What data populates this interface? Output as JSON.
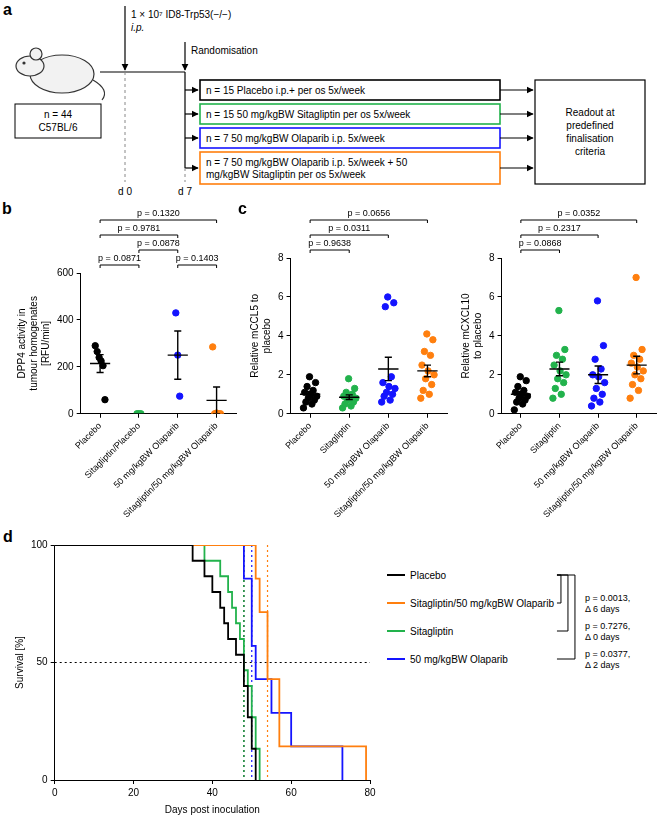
{
  "panel_a": {
    "label": "a",
    "inoculum": "1 × 10⁷ ID8-Trp53(−/−)",
    "route": "i.p.",
    "cohort": [
      "n = 44",
      "C57BL/6"
    ],
    "day_start": "d 0",
    "day_randomisation": "d 7",
    "randomisation": "Randomisation",
    "arms": [
      {
        "text": "n = 15 Placebo i.p.+ per os 5x/week",
        "color": "#000000"
      },
      {
        "text": "n = 15 50 mg/kgBW Sitagliptin per os 5x/week",
        "color": "#22b24c"
      },
      {
        "text": "n = 7 50 mg/kgBW Olaparib i.p. 5x/week",
        "color": "#1414ff"
      },
      {
        "text": "n = 7 50 mg/kgBW Olaparib i.p. 5x/week + 50 mg/kgBW Sitagliptin per os 5x/week",
        "color": "#ff7f0e"
      }
    ],
    "readout": "Readout at predefined finalisation criteria"
  },
  "chart_data": [
    {
      "panel": "b",
      "type": "strip",
      "categories": [
        "Placebo",
        "Sitagliptin/Placebo",
        "50 mg/kgBW Olaparib",
        "Sitagliptin/50 mg/kgBW Olaparib"
      ],
      "colors": [
        "#000000",
        "#22b24c",
        "#1414ff",
        "#ff7f0e"
      ],
      "values": [
        [
          290,
          265,
          240,
          225,
          205,
          60
        ],
        [
          0,
          0,
          0
        ],
        [
          430,
          250,
          75
        ],
        [
          285,
          3,
          0,
          0,
          0
        ]
      ],
      "means": [
        214,
        0,
        250,
        57
      ],
      "sem": [
        38,
        0,
        103,
        57
      ],
      "ylabel": "DPP4 activity in tumour homogenates [RFU/min]",
      "ylim": [
        0,
        600
      ],
      "yticks": [
        0,
        200,
        400,
        600
      ],
      "grid": false,
      "comparisons": [
        {
          "from": "Placebo",
          "to": "Sitagliptin/Placebo",
          "label": "p = 0.0871"
        },
        {
          "from": "Placebo",
          "to": "50 mg/kgBW Olaparib",
          "label": "p = 0.9781"
        },
        {
          "from": "Placebo",
          "to": "Sitagliptin/50 mg/kgBW Olaparib",
          "label": "p = 0.1320"
        },
        {
          "from": "Sitagliptin/Placebo",
          "to": "50 mg/kgBW Olaparib",
          "label": "p = 0.0878"
        },
        {
          "from": "50 mg/kgBW Olaparib",
          "to": "Sitagliptin/50 mg/kgBW Olaparib",
          "label": "p = 0.1403"
        }
      ]
    },
    {
      "panel": "c",
      "type": "strip",
      "categories": [
        "Placebo",
        "Sitagliptin",
        "50 mg/kgBW Olaparib",
        "Sitagliptin/50 mg/kgBW Olaparib"
      ],
      "colors": [
        "#000000",
        "#22b24c",
        "#1414ff",
        "#ff7f0e"
      ],
      "values": [
        [
          0.3,
          0.5,
          0.6,
          0.7,
          0.8,
          0.9,
          1.0,
          1.1,
          1.2,
          1.4,
          1.6,
          1.9
        ],
        [
          0.3,
          0.4,
          0.5,
          0.6,
          0.7,
          0.8,
          0.8,
          0.9,
          1.0,
          1.1,
          1.3,
          1.8
        ],
        [
          0.6,
          0.7,
          0.9,
          1.0,
          1.1,
          1.3,
          1.4,
          1.6,
          1.9,
          5.5,
          5.7,
          6.0
        ],
        [
          0.8,
          1.0,
          1.2,
          1.5,
          1.8,
          2.0,
          2.2,
          2.5,
          3.0,
          3.2,
          3.8,
          4.1
        ]
      ],
      "means": [
        1.0,
        0.85,
        2.3,
        2.2
      ],
      "sem": [
        0.14,
        0.12,
        0.6,
        0.3
      ],
      "ylabel": "Relative mCCL5 to placebo",
      "ylim": [
        0,
        8
      ],
      "yticks": [
        0,
        2,
        4,
        6,
        8
      ],
      "grid": false,
      "comparisons": [
        {
          "from": "Placebo",
          "to": "Sitagliptin",
          "label": "p = 0.9638"
        },
        {
          "from": "Placebo",
          "to": "50 mg/kgBW Olaparib",
          "label": "p = 0.0311"
        },
        {
          "from": "Placebo",
          "to": "Sitagliptin/50 mg/kgBW Olaparib",
          "label": "p = 0.0656"
        }
      ]
    },
    {
      "type": "strip",
      "categories": [
        "Placebo",
        "Sitagliptin",
        "50 mg/kgBW Olaparib",
        "Sitagliptin/50 mg/kgBW Olaparib"
      ],
      "colors": [
        "#000000",
        "#22b24c",
        "#1414ff",
        "#ff7f0e"
      ],
      "values": [
        [
          0.2,
          0.5,
          0.6,
          0.7,
          0.8,
          0.9,
          1.0,
          1.1,
          1.2,
          1.4,
          1.7,
          1.9
        ],
        [
          0.8,
          1.0,
          1.3,
          1.6,
          1.8,
          2.0,
          2.2,
          2.5,
          2.8,
          3.0,
          3.3,
          5.3
        ],
        [
          0.4,
          0.6,
          0.8,
          1.0,
          1.3,
          1.6,
          1.9,
          2.0,
          2.3,
          2.8,
          3.5,
          5.8
        ],
        [
          0.8,
          1.2,
          1.5,
          1.8,
          2.0,
          2.2,
          2.4,
          2.6,
          2.8,
          3.0,
          3.3,
          7.0
        ]
      ],
      "means": [
        1.0,
        2.3,
        2.0,
        2.5
      ],
      "sem": [
        0.15,
        0.35,
        0.45,
        0.45
      ],
      "ylabel": "Relative mCXCL10 to placebo",
      "ylim": [
        0,
        8
      ],
      "yticks": [
        0,
        2,
        4,
        6,
        8
      ],
      "grid": false,
      "comparisons": [
        {
          "from": "Placebo",
          "to": "Sitagliptin",
          "label": "p = 0.0868"
        },
        {
          "from": "Placebo",
          "to": "50 mg/kgBW Olaparib",
          "label": "p = 0.2317"
        },
        {
          "from": "Placebo",
          "to": "Sitagliptin/50 mg/kgBW Olaparib",
          "label": "p = 0.0352"
        }
      ]
    },
    {
      "panel": "d",
      "type": "line",
      "line_style": "step",
      "xlabel": "Days post inoculation",
      "ylabel": "Survival [%]",
      "xlim": [
        0,
        80
      ],
      "xticks": [
        0,
        20,
        40,
        60,
        80
      ],
      "ylim": [
        0,
        100
      ],
      "yticks": [
        0,
        50,
        100
      ],
      "grid": false,
      "legend": "right",
      "median_line": 50,
      "series": [
        {
          "name": "Placebo",
          "color": "#000000",
          "median": 48,
          "x": [
            0,
            35,
            38,
            40,
            42,
            43,
            44,
            46,
            48,
            49,
            50,
            51
          ],
          "values": [
            100,
            93.3,
            86.7,
            80,
            73.3,
            66.7,
            60,
            53.3,
            40,
            26.7,
            13.3,
            0
          ]
        },
        {
          "name": "Sitagliptin/50 mg/kgBW Olaparib",
          "color": "#ff7f0e",
          "median": 54,
          "x": [
            0,
            51,
            52,
            54,
            57,
            79
          ],
          "values": [
            100,
            85.7,
            71.4,
            42.9,
            14.3,
            0
          ]
        },
        {
          "name": "Sitagliptin",
          "color": "#22b24c",
          "median": 48,
          "x": [
            0,
            38,
            42,
            44,
            45,
            46,
            47,
            48,
            49,
            50,
            51,
            52
          ],
          "values": [
            100,
            93.3,
            86.7,
            80,
            73.3,
            66.7,
            60,
            46.7,
            40,
            26.7,
            13.3,
            0
          ]
        },
        {
          "name": "50 mg/kgBW Olaparib",
          "color": "#1414ff",
          "median": 50,
          "x": [
            0,
            48,
            50,
            51,
            55,
            60,
            73
          ],
          "values": [
            100,
            85.7,
            57.1,
            42.9,
            28.6,
            14.3,
            0
          ]
        }
      ],
      "comparisons": [
        {
          "from": "Placebo",
          "to": "Sitagliptin",
          "label": "p = 0.7276, Δ 0 days"
        },
        {
          "from": "Placebo",
          "to": "50 mg/kgBW Olaparib",
          "label": "p = 0.0377, Δ 2 days"
        },
        {
          "from": "Placebo",
          "to": "Sitagliptin/50 mg/kgBW Olaparib",
          "label": "p = 0.0013, Δ 6 days"
        }
      ]
    }
  ]
}
